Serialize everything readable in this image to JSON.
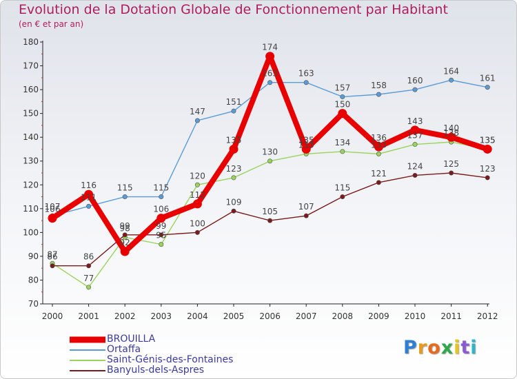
{
  "title": "Evolution de la Dotation Globale de Fonctionnement par Habitant",
  "subtitle": "(en € et par an)",
  "logo": {
    "letters": [
      "P",
      "r",
      "o",
      "x",
      "i",
      "t",
      "i"
    ],
    "colors": [
      "#2f7fd4",
      "#e89a1c",
      "#e8681c",
      "#2fa84a",
      "#e8c51c",
      "#8a5bd4",
      "#2fb4c8"
    ]
  },
  "chart_data": {
    "type": "line",
    "title": "Evolution de la Dotation Globale de Fonctionnement par Habitant",
    "subtitle": "(en € et par an)",
    "x": [
      "2000",
      "2001",
      "2002",
      "2003",
      "2004",
      "2005",
      "2006",
      "2007",
      "2008",
      "2009",
      "2010",
      "2011",
      "2012"
    ],
    "ylim": [
      70,
      180
    ],
    "yticks": [
      70,
      80,
      90,
      100,
      110,
      120,
      130,
      140,
      150,
      160,
      170,
      180
    ],
    "grid": false,
    "legend_position": "bottom-left",
    "series": [
      {
        "name": "BROUILLA",
        "color": "#e80000",
        "emphasis": true,
        "values": [
          106,
          116,
          92,
          106,
          112,
          135,
          174,
          135,
          150,
          136,
          143,
          140,
          135
        ],
        "labels": [
          "106",
          "116",
          "92",
          "106",
          "112",
          "135",
          "174",
          "135",
          "150",
          "136",
          "143",
          "140",
          "135"
        ]
      },
      {
        "name": "Ortaffa",
        "color": "#5b9bd5",
        "values": [
          107,
          111,
          115,
          115,
          147,
          151,
          163,
          163,
          157,
          158,
          160,
          164,
          161
        ],
        "labels": [
          "107",
          "111",
          "115",
          "115",
          "147",
          "151",
          "163",
          "163",
          "157",
          "158",
          "160",
          "164",
          "161"
        ]
      },
      {
        "name": "Saint-Génis-des-Fontaines",
        "color": "#99d35c",
        "values": [
          87,
          77,
          98,
          95,
          120,
          123,
          130,
          133,
          134,
          133,
          137,
          138,
          135
        ],
        "labels": [
          "87",
          "77",
          "98",
          "95",
          "120",
          "123",
          "130",
          "133",
          "134",
          "133",
          "137",
          "138",
          "135"
        ]
      },
      {
        "name": "Banyuls-dels-Aspres",
        "color": "#7a1a1a",
        "values": [
          86,
          86,
          99,
          99,
          100,
          109,
          105,
          107,
          115,
          121,
          124,
          125,
          123
        ],
        "labels": [
          "86",
          "86",
          "99",
          "99",
          "100",
          "109",
          "105",
          "107",
          "115",
          "121",
          "124",
          "125",
          "123"
        ]
      }
    ]
  }
}
